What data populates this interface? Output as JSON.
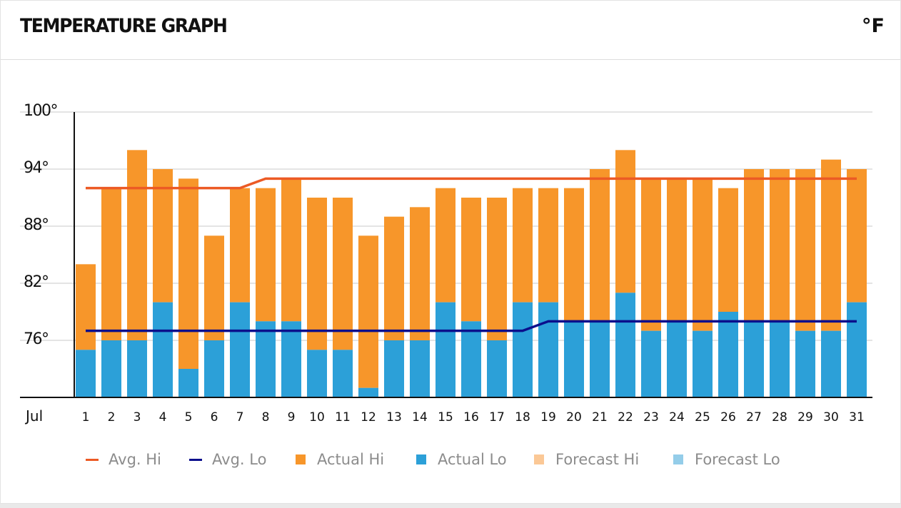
{
  "header": {
    "title": "TEMPERATURE GRAPH",
    "unit": "°F"
  },
  "chart_data": {
    "type": "bar",
    "month_label": "Jul",
    "categories": [
      "1",
      "2",
      "3",
      "4",
      "5",
      "6",
      "7",
      "8",
      "9",
      "10",
      "11",
      "12",
      "13",
      "14",
      "15",
      "16",
      "17",
      "18",
      "19",
      "20",
      "21",
      "22",
      "23",
      "24",
      "25",
      "26",
      "27",
      "28",
      "29",
      "30",
      "31"
    ],
    "y_ticks": [
      "100°",
      "94°",
      "88°",
      "82°",
      "76°"
    ],
    "y_tick_values": [
      100,
      94,
      88,
      82,
      76
    ],
    "ylim": [
      70,
      100
    ],
    "grid": true,
    "series": [
      {
        "name": "Actual Hi",
        "kind": "bar",
        "color": "#f7962a",
        "values": [
          84,
          92,
          96,
          94,
          93,
          87,
          92,
          92,
          93,
          91,
          91,
          87,
          89,
          90,
          92,
          91,
          91,
          92,
          92,
          92,
          94,
          96,
          93,
          93,
          93,
          92,
          94,
          94,
          94,
          95,
          94
        ]
      },
      {
        "name": "Actual Lo",
        "kind": "bar",
        "color": "#2ca0d8",
        "values": [
          75,
          76,
          76,
          80,
          73,
          76,
          80,
          78,
          78,
          75,
          75,
          71,
          76,
          76,
          80,
          78,
          76,
          80,
          80,
          78,
          78,
          81,
          77,
          78,
          77,
          79,
          78,
          78,
          77,
          77,
          80
        ]
      },
      {
        "name": "Avg. Hi",
        "kind": "line",
        "color": "#ec5a24",
        "values": [
          92,
          92,
          92,
          92,
          92,
          92,
          92,
          93,
          93,
          93,
          93,
          93,
          93,
          93,
          93,
          93,
          93,
          93,
          93,
          93,
          93,
          93,
          93,
          93,
          93,
          93,
          93,
          93,
          93,
          93,
          93
        ]
      },
      {
        "name": "Avg. Lo",
        "kind": "line",
        "color": "#0a0f8c",
        "values": [
          77,
          77,
          77,
          77,
          77,
          77,
          77,
          77,
          77,
          77,
          77,
          77,
          77,
          77,
          77,
          77,
          77,
          77,
          78,
          78,
          78,
          78,
          78,
          78,
          78,
          78,
          78,
          78,
          78,
          78,
          78
        ]
      }
    ],
    "legend": [
      {
        "label": "Avg. Hi",
        "color": "#ec5a24",
        "shape": "line"
      },
      {
        "label": "Avg. Lo",
        "color": "#0a0f8c",
        "shape": "line"
      },
      {
        "label": "Actual Hi",
        "color": "#f7962a",
        "shape": "box"
      },
      {
        "label": "Actual Lo",
        "color": "#2ca0d8",
        "shape": "box"
      },
      {
        "label": "Forecast Hi",
        "color": "#fbc896",
        "shape": "box"
      },
      {
        "label": "Forecast Lo",
        "color": "#94cde9",
        "shape": "box"
      }
    ],
    "legend_position": "bottom"
  }
}
